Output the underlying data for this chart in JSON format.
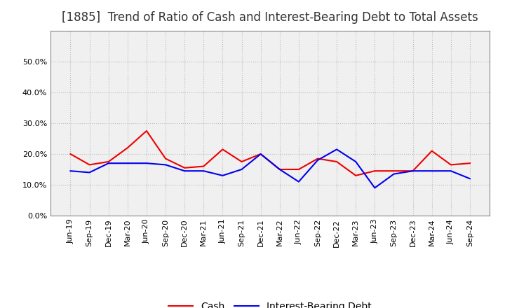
{
  "title": "[1885]  Trend of Ratio of Cash and Interest-Bearing Debt to Total Assets",
  "x_labels": [
    "Jun-19",
    "Sep-19",
    "Dec-19",
    "Mar-20",
    "Jun-20",
    "Sep-20",
    "Dec-20",
    "Mar-21",
    "Jun-21",
    "Sep-21",
    "Dec-21",
    "Mar-22",
    "Jun-22",
    "Sep-22",
    "Dec-22",
    "Mar-23",
    "Jun-23",
    "Sep-23",
    "Dec-23",
    "Mar-24",
    "Jun-24",
    "Sep-24"
  ],
  "cash": [
    0.2,
    0.165,
    0.175,
    0.22,
    0.275,
    0.185,
    0.155,
    0.16,
    0.215,
    0.175,
    0.2,
    0.15,
    0.15,
    0.185,
    0.175,
    0.13,
    0.145,
    0.145,
    0.145,
    0.21,
    0.165,
    0.17
  ],
  "interest_bearing_debt": [
    0.145,
    0.14,
    0.17,
    0.17,
    0.17,
    0.165,
    0.145,
    0.145,
    0.13,
    0.15,
    0.2,
    0.15,
    0.11,
    0.18,
    0.215,
    0.175,
    0.09,
    0.135,
    0.145,
    0.145,
    0.145,
    0.12
  ],
  "cash_color": "#ee0000",
  "ibd_color": "#0000ee",
  "ylim_min": 0.0,
  "ylim_max": 0.6,
  "yticks": [
    0.0,
    0.1,
    0.2,
    0.3,
    0.4,
    0.5
  ],
  "legend_cash": "Cash",
  "legend_ibd": "Interest-Bearing Debt",
  "bg_color": "#ffffff",
  "plot_bg_color": "#f0f0f0",
  "grid_color": "#bbbbbb",
  "title_color": "#333333",
  "line_width": 1.5,
  "title_fontsize": 12,
  "tick_fontsize": 8,
  "legend_fontsize": 10
}
